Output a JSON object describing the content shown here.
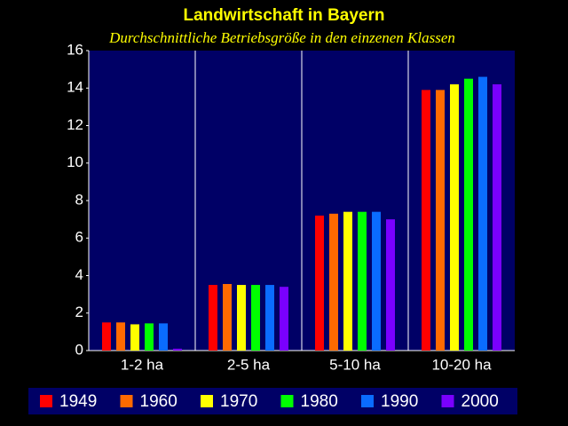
{
  "chart_data": {
    "type": "bar",
    "title": "Landwirtschaft in Bayern",
    "subtitle": "Durchschnittliche Betriebsgröße in den einzenen Klassen",
    "categories": [
      "1-2 ha",
      "2-5 ha",
      "5-10 ha",
      "10-20 ha"
    ],
    "series": [
      {
        "name": "1949",
        "color": "#ff0000",
        "values": [
          1.5,
          3.5,
          7.2,
          13.9
        ]
      },
      {
        "name": "1960",
        "color": "#ff6a00",
        "values": [
          1.5,
          3.55,
          7.3,
          13.9
        ]
      },
      {
        "name": "1970",
        "color": "#ffff00",
        "values": [
          1.4,
          3.5,
          7.4,
          14.2
        ]
      },
      {
        "name": "1980",
        "color": "#00ff00",
        "values": [
          1.45,
          3.5,
          7.4,
          14.5
        ]
      },
      {
        "name": "1990",
        "color": "#0a6cff",
        "values": [
          1.45,
          3.5,
          7.4,
          14.6
        ]
      },
      {
        "name": "2000",
        "color": "#7a00ff",
        "values": [
          0.1,
          3.4,
          7.0,
          14.2
        ]
      }
    ],
    "ylim": [
      0,
      16
    ],
    "yticks": [
      0,
      2,
      4,
      6,
      8,
      10,
      12,
      14,
      16
    ],
    "legend": "bottom"
  }
}
